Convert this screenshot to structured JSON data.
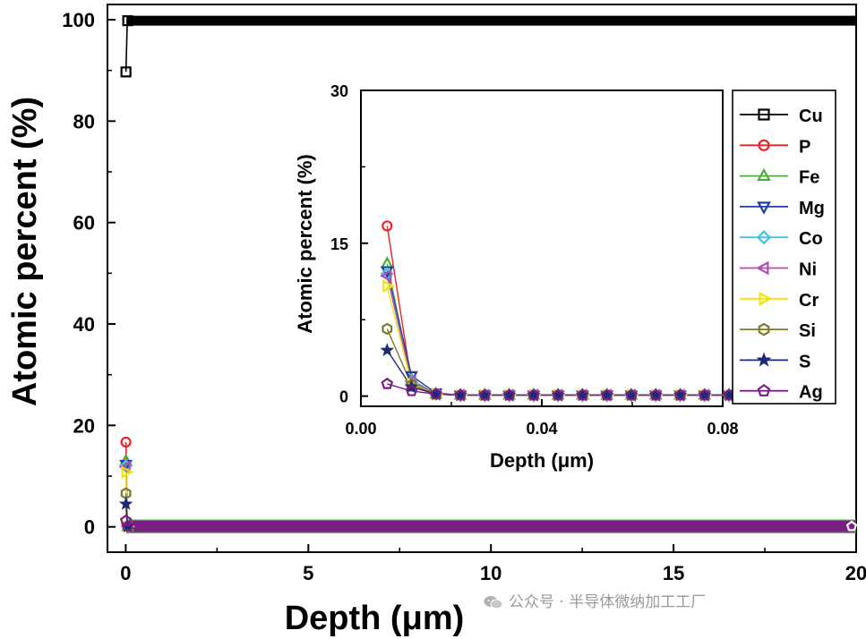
{
  "chart_data": {
    "type": "scatter",
    "main": {
      "xlabel": "Depth (μm)",
      "ylabel": "Atomic percent (%)",
      "xlim": [
        -0.5,
        20
      ],
      "ylim": [
        -5,
        103
      ],
      "xticks": [
        0,
        5,
        10,
        15,
        20
      ],
      "yticks": [
        0,
        20,
        40,
        60,
        80,
        100
      ],
      "xticklabels": [
        "0",
        "5",
        "10",
        "15",
        "20"
      ],
      "yticklabels": [
        "0",
        "20",
        "40",
        "60",
        "80",
        "100"
      ],
      "first_point_x": 0.006,
      "series": [
        {
          "name": "Cu",
          "marker": "square",
          "color": "#000000",
          "first": 89.7,
          "level": 99.8
        },
        {
          "name": "P",
          "marker": "circle",
          "color": "#e8242a",
          "first": 16.7,
          "level": 0.1
        },
        {
          "name": "Fe",
          "marker": "triangle-up",
          "color": "#4caf3c",
          "first": 13.0,
          "level": 0.1
        },
        {
          "name": "Mg",
          "marker": "triangle-down",
          "color": "#1f3f9f",
          "first": 12.3,
          "level": 0.1
        },
        {
          "name": "Co",
          "marker": "diamond",
          "color": "#41c6e0",
          "first": 12.0,
          "level": 0.1
        },
        {
          "name": "Ni",
          "marker": "triangle-left",
          "color": "#b24db4",
          "first": 11.8,
          "level": 0.1
        },
        {
          "name": "Cr",
          "marker": "triangle-right",
          "color": "#f2e300",
          "first": 10.8,
          "level": 0.1
        },
        {
          "name": "Si",
          "marker": "hexagon",
          "color": "#7c7a24",
          "first": 6.6,
          "level": 0.1
        },
        {
          "name": "S",
          "marker": "star",
          "color": "#1c2a78",
          "first": 4.5,
          "level": 0.1
        },
        {
          "name": "Ag",
          "marker": "pentagon",
          "color": "#7a1d86",
          "first": 1.2,
          "level": 0.1
        }
      ]
    },
    "inset": {
      "xlabel": "Depth (μm)",
      "ylabel": "Atomic percent (%)",
      "xlim": [
        0,
        0.08
      ],
      "ylim": [
        -1,
        30
      ],
      "xticks": [
        0.0,
        0.04,
        0.08
      ],
      "yticks": [
        0,
        15,
        30
      ],
      "xticklabels": [
        "0.00",
        "0.04",
        "0.08"
      ],
      "yticklabels": [
        "0",
        "15",
        "30"
      ],
      "x": [
        0.0058,
        0.0112,
        0.0166,
        0.022,
        0.0274,
        0.0328,
        0.0382,
        0.0436,
        0.049,
        0.0544,
        0.0598,
        0.0652,
        0.0706,
        0.076,
        0.0814
      ],
      "series": [
        {
          "name": "P",
          "values": [
            16.7,
            1.3,
            0.2,
            0.1,
            0.1,
            0.1,
            0.1,
            0.1,
            0.1,
            0.1,
            0.1,
            0.1,
            0.1,
            0.1,
            0.1
          ]
        },
        {
          "name": "Fe",
          "values": [
            13.0,
            1.6,
            0.2,
            0.1,
            0.1,
            0.1,
            0.1,
            0.1,
            0.1,
            0.1,
            0.1,
            0.1,
            0.1,
            0.1,
            0.1
          ]
        },
        {
          "name": "Mg",
          "values": [
            12.3,
            2.0,
            0.3,
            0.1,
            0.1,
            0.1,
            0.1,
            0.1,
            0.1,
            0.1,
            0.1,
            0.1,
            0.1,
            0.1,
            0.1
          ]
        },
        {
          "name": "Co",
          "values": [
            12.0,
            1.4,
            0.2,
            0.1,
            0.1,
            0.1,
            0.1,
            0.1,
            0.1,
            0.1,
            0.1,
            0.1,
            0.1,
            0.1,
            0.1
          ]
        },
        {
          "name": "Ni",
          "values": [
            11.8,
            1.5,
            0.2,
            0.1,
            0.1,
            0.1,
            0.1,
            0.1,
            0.1,
            0.1,
            0.1,
            0.1,
            0.1,
            0.1,
            0.1
          ]
        },
        {
          "name": "Cr",
          "values": [
            10.8,
            1.2,
            0.2,
            0.1,
            0.1,
            0.1,
            0.1,
            0.1,
            0.1,
            0.1,
            0.1,
            0.1,
            0.1,
            0.1,
            0.1
          ]
        },
        {
          "name": "Si",
          "values": [
            6.6,
            1.1,
            0.2,
            0.1,
            0.1,
            0.1,
            0.1,
            0.1,
            0.1,
            0.1,
            0.1,
            0.1,
            0.1,
            0.1,
            0.1
          ]
        },
        {
          "name": "S",
          "values": [
            4.5,
            0.9,
            0.2,
            0.1,
            0.1,
            0.1,
            0.1,
            0.1,
            0.1,
            0.1,
            0.1,
            0.1,
            0.1,
            0.1,
            0.1
          ]
        },
        {
          "name": "Ag",
          "values": [
            1.2,
            0.5,
            0.2,
            0.1,
            0.1,
            0.1,
            0.1,
            0.1,
            0.1,
            0.1,
            0.1,
            0.1,
            0.1,
            0.1,
            0.1
          ]
        }
      ]
    },
    "legend": [
      "Cu",
      "P",
      "Fe",
      "Mg",
      "Co",
      "Ni",
      "Cr",
      "Si",
      "S",
      "Ag"
    ]
  },
  "watermark": {
    "text": "公众号 · 半导体微纳加工工厂",
    "icon": "wechat-icon"
  }
}
